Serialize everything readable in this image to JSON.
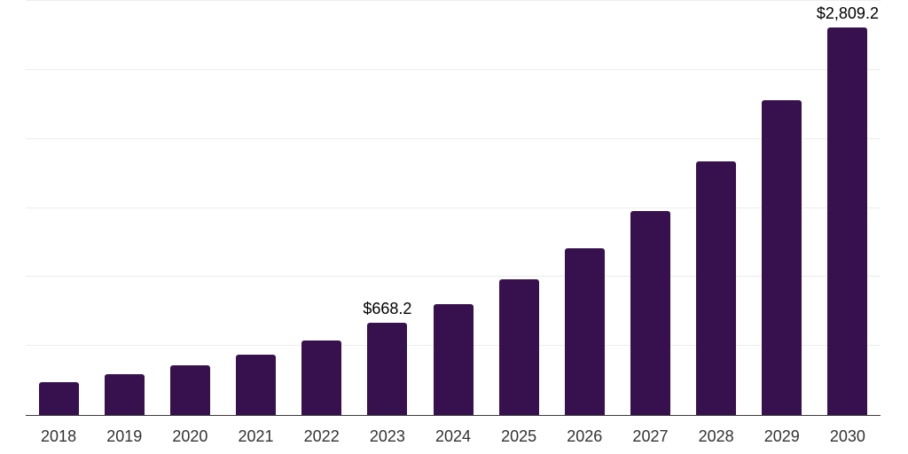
{
  "chart_data": {
    "type": "bar",
    "title": "",
    "xlabel": "",
    "ylabel": "",
    "categories": [
      "2018",
      "2019",
      "2020",
      "2021",
      "2022",
      "2023",
      "2024",
      "2025",
      "2026",
      "2027",
      "2028",
      "2029",
      "2030"
    ],
    "values": [
      240,
      295,
      360,
      440,
      540,
      668.2,
      805,
      985,
      1205,
      1480,
      1835,
      2280,
      2809.2
    ],
    "data_labels": [
      {
        "category": "2023",
        "text": "$668.2"
      },
      {
        "category": "2030",
        "text": "$2,809.2"
      }
    ],
    "ylim": [
      0,
      3000
    ],
    "gridline_step": 500,
    "grid": true,
    "legend": false,
    "y_tick_labels_visible": false,
    "colors": {
      "bar": "#37114D",
      "axis_line": "#3b3b3b",
      "gridline": "#ededed",
      "x_tick_label": "#333333",
      "data_label": "#000000",
      "background": "#ffffff"
    }
  }
}
